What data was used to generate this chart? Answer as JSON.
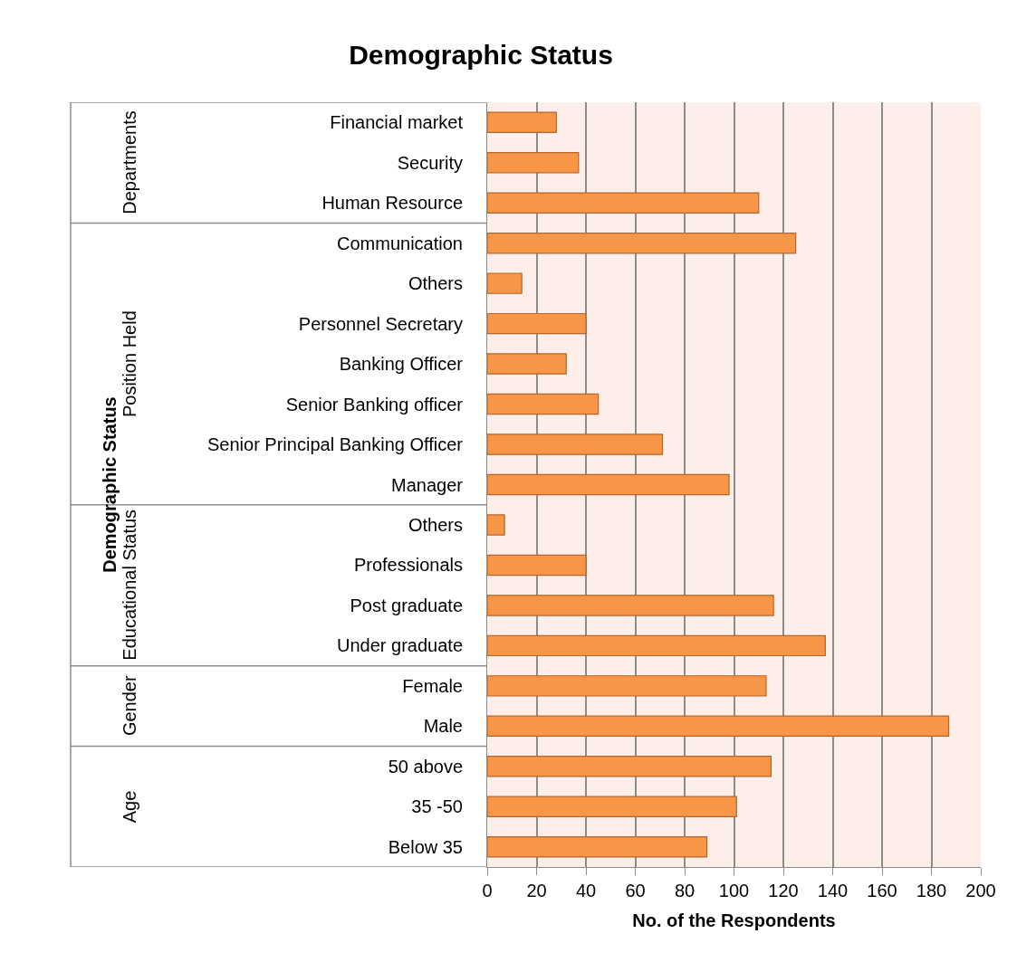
{
  "chart_data": {
    "type": "bar",
    "orientation": "horizontal",
    "title": "Demographic Status",
    "xlabel": "No. of the Respondents",
    "ylabel": "Demographic Status",
    "categories": [
      "Financial market",
      "Security",
      "Human Resource",
      "Communication",
      "Others",
      "Personnel Secretary",
      "Banking Officer",
      "Senior Banking officer",
      "Senior Principal Banking Officer",
      "Manager",
      "Others",
      "Professionals",
      "Post graduate",
      "Under graduate",
      "Female",
      "Male",
      "50 above",
      "35 -50",
      "Below 35"
    ],
    "values": [
      28,
      37,
      110,
      125,
      14,
      40,
      32,
      45,
      71,
      98,
      7,
      40,
      116,
      137,
      113,
      187,
      115,
      101,
      89
    ],
    "color": "#f79646",
    "xlim": [
      0,
      200
    ],
    "xticks": [
      0,
      20,
      40,
      60,
      80,
      100,
      120,
      140,
      160,
      180,
      200
    ],
    "grid": "x",
    "annotations": [
      "Departments",
      "Position Held",
      "Educational Status",
      "Gender",
      "Age"
    ]
  }
}
